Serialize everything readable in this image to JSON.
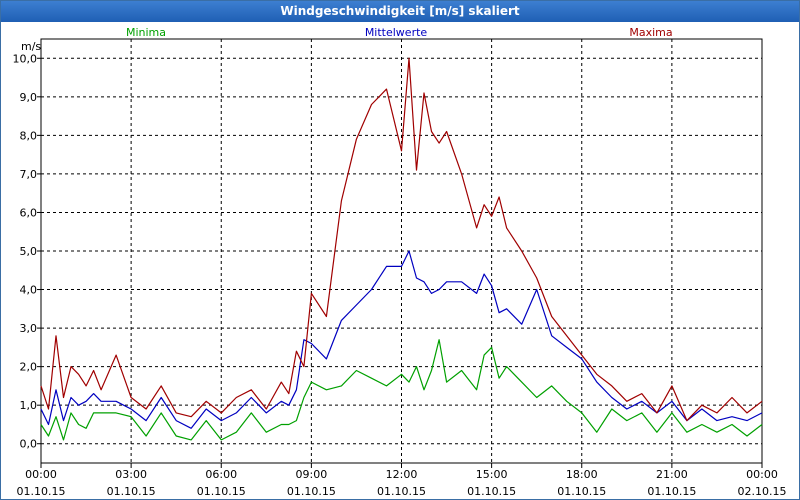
{
  "chart_data": {
    "type": "line",
    "title": "Windgeschwindigkeit [m/s] skaliert",
    "ylabel": "m/s",
    "ylim": [
      -0.5,
      10.5
    ],
    "y_ticks": [
      "0,0",
      "1,0",
      "2,0",
      "3,0",
      "4,0",
      "5,0",
      "6,0",
      "7,0",
      "8,0",
      "9,0",
      "10,0"
    ],
    "x_ticks": [
      {
        "time": "00:00",
        "date": "01.10.15"
      },
      {
        "time": "03:00",
        "date": "01.10.15"
      },
      {
        "time": "06:00",
        "date": "01.10.15"
      },
      {
        "time": "09:00",
        "date": "01.10.15"
      },
      {
        "time": "12:00",
        "date": "01.10.15"
      },
      {
        "time": "15:00",
        "date": "01.10.15"
      },
      {
        "time": "18:00",
        "date": "01.10.15"
      },
      {
        "time": "21:00",
        "date": "01.10.15"
      },
      {
        "time": "00:00",
        "date": "02.10.15"
      }
    ],
    "x_hours": [
      0,
      24
    ],
    "grid": true,
    "series": [
      {
        "name": "Minima",
        "color": "#00a000",
        "x": [
          0,
          0.25,
          0.5,
          0.75,
          1,
          1.25,
          1.5,
          1.75,
          2,
          2.5,
          3,
          3.5,
          4,
          4.5,
          5,
          5.5,
          6,
          6.5,
          7,
          7.5,
          8,
          8.25,
          8.5,
          8.75,
          9,
          9.5,
          10,
          10.5,
          11,
          11.5,
          12,
          12.25,
          12.5,
          12.75,
          13,
          13.25,
          13.5,
          14,
          14.5,
          14.75,
          15,
          15.25,
          15.5,
          16,
          16.5,
          17,
          17.5,
          18,
          18.5,
          19,
          19.5,
          20,
          20.5,
          21,
          21.5,
          22,
          22.5,
          23,
          23.5,
          24
        ],
        "values": [
          0.5,
          0.2,
          0.7,
          0.1,
          0.8,
          0.5,
          0.4,
          0.8,
          0.8,
          0.8,
          0.7,
          0.2,
          0.8,
          0.2,
          0.1,
          0.6,
          0.1,
          0.3,
          0.8,
          0.3,
          0.5,
          0.5,
          0.6,
          1.2,
          1.6,
          1.4,
          1.5,
          1.9,
          1.7,
          1.5,
          1.8,
          1.6,
          2.0,
          1.4,
          1.9,
          2.7,
          1.6,
          1.9,
          1.4,
          2.3,
          2.5,
          1.7,
          2.0,
          1.6,
          1.2,
          1.5,
          1.1,
          0.8,
          0.3,
          0.9,
          0.6,
          0.8,
          0.3,
          0.8,
          0.3,
          0.5,
          0.3,
          0.5,
          0.2,
          0.5
        ]
      },
      {
        "name": "Mittelwerte",
        "color": "#0000c0",
        "x": [
          0,
          0.25,
          0.5,
          0.75,
          1,
          1.25,
          1.5,
          1.75,
          2,
          2.5,
          3,
          3.5,
          4,
          4.5,
          5,
          5.5,
          6,
          6.5,
          7,
          7.5,
          8,
          8.25,
          8.5,
          8.75,
          9,
          9.5,
          10,
          10.5,
          11,
          11.5,
          12,
          12.25,
          12.5,
          12.75,
          13,
          13.25,
          13.5,
          14,
          14.5,
          14.75,
          15,
          15.25,
          15.5,
          16,
          16.5,
          17,
          17.5,
          18,
          18.5,
          19,
          19.5,
          20,
          20.5,
          21,
          21.5,
          22,
          22.5,
          23,
          23.5,
          24
        ],
        "values": [
          0.9,
          0.5,
          1.4,
          0.6,
          1.2,
          1.0,
          1.1,
          1.3,
          1.1,
          1.1,
          0.9,
          0.6,
          1.2,
          0.6,
          0.4,
          0.9,
          0.6,
          0.8,
          1.2,
          0.8,
          1.1,
          1.0,
          1.4,
          2.7,
          2.6,
          2.2,
          3.2,
          3.6,
          4.0,
          4.6,
          4.6,
          5.0,
          4.3,
          4.2,
          3.9,
          4.0,
          4.2,
          4.2,
          3.9,
          4.4,
          4.1,
          3.4,
          3.5,
          3.1,
          4.0,
          2.8,
          2.5,
          2.2,
          1.6,
          1.2,
          0.9,
          1.1,
          0.8,
          1.1,
          0.6,
          0.9,
          0.6,
          0.7,
          0.6,
          0.8
        ]
      },
      {
        "name": "Maxima",
        "color": "#a00000",
        "x": [
          0,
          0.25,
          0.5,
          0.75,
          1,
          1.25,
          1.5,
          1.75,
          2,
          2.5,
          3,
          3.5,
          4,
          4.5,
          5,
          5.5,
          6,
          6.5,
          7,
          7.5,
          8,
          8.25,
          8.5,
          8.75,
          9,
          9.5,
          10,
          10.5,
          11,
          11.5,
          12,
          12.25,
          12.5,
          12.75,
          13,
          13.25,
          13.5,
          14,
          14.5,
          14.75,
          15,
          15.25,
          15.5,
          16,
          16.5,
          17,
          17.5,
          18,
          18.5,
          19,
          19.5,
          20,
          20.5,
          21,
          21.5,
          22,
          22.5,
          23,
          23.5,
          24
        ],
        "values": [
          1.5,
          0.9,
          2.8,
          1.2,
          2.0,
          1.8,
          1.5,
          1.9,
          1.4,
          2.3,
          1.2,
          0.9,
          1.5,
          0.8,
          0.7,
          1.1,
          0.8,
          1.2,
          1.4,
          0.9,
          1.6,
          1.3,
          2.4,
          2.0,
          3.9,
          3.3,
          6.3,
          7.9,
          8.8,
          9.2,
          7.6,
          10.0,
          7.1,
          9.1,
          8.1,
          7.8,
          8.1,
          7.0,
          5.6,
          6.2,
          5.9,
          6.4,
          5.6,
          5.0,
          4.3,
          3.3,
          2.8,
          2.3,
          1.8,
          1.5,
          1.1,
          1.3,
          0.8,
          1.5,
          0.6,
          1.0,
          0.8,
          1.2,
          0.8,
          1.1
        ]
      }
    ]
  }
}
